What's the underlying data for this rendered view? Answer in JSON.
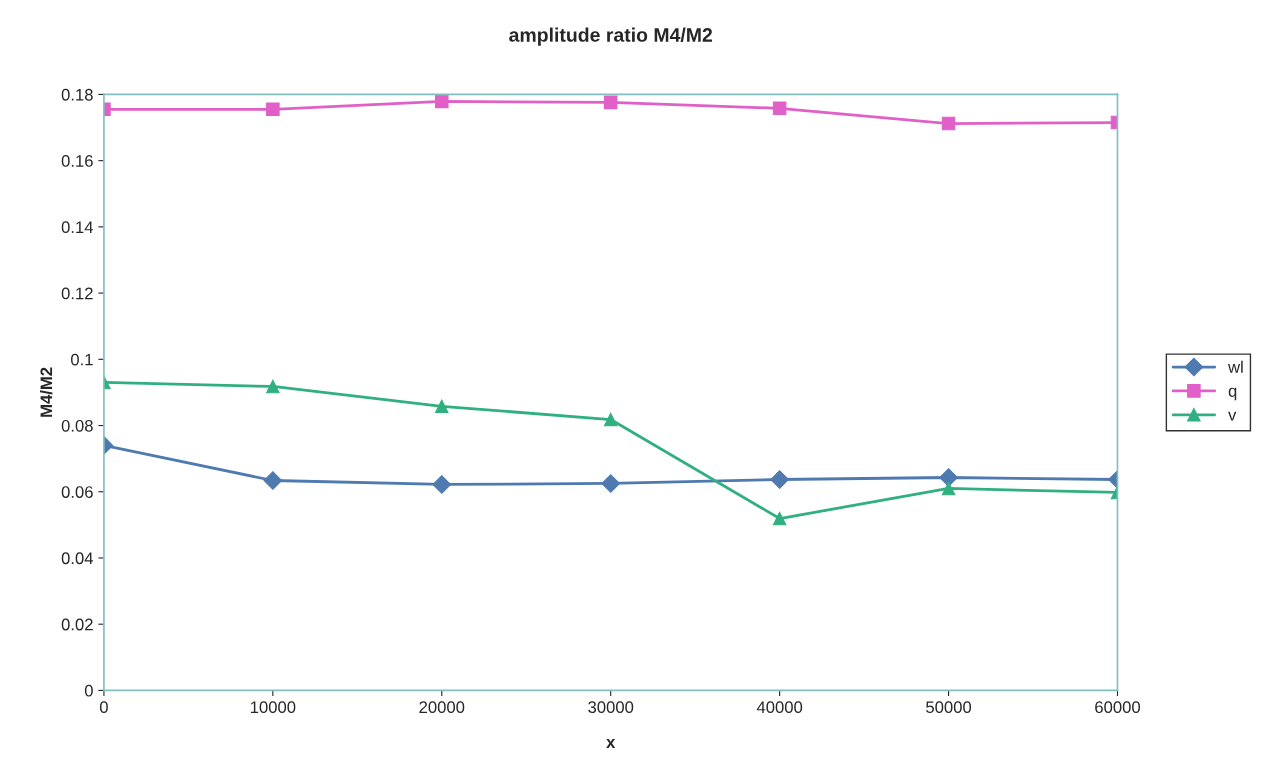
{
  "chart_data": {
    "type": "line",
    "title": "amplitude ratio M4/M2",
    "xlabel": "x",
    "ylabel": "M4/M2",
    "x": [
      0,
      10000,
      20000,
      30000,
      40000,
      50000,
      60000
    ],
    "series": [
      {
        "name": "wl",
        "color": "#4f7ab0",
        "marker": "diamond",
        "values": [
          0.074,
          0.0634,
          0.0622,
          0.0625,
          0.0637,
          0.0643,
          0.0637
        ]
      },
      {
        "name": "q",
        "color": "#e060c8",
        "marker": "square",
        "values": [
          0.1755,
          0.1755,
          0.1779,
          0.1776,
          0.1758,
          0.1712,
          0.1715
        ]
      },
      {
        "name": "v",
        "color": "#30b080",
        "marker": "triangle",
        "values": [
          0.093,
          0.0918,
          0.0858,
          0.0818,
          0.0519,
          0.061,
          0.0598
        ]
      }
    ],
    "xlim": [
      0,
      60000
    ],
    "xticks": [
      0,
      10000,
      20000,
      30000,
      40000,
      50000,
      60000
    ],
    "ylim": [
      0,
      0.18
    ],
    "yticks": [
      0,
      0.02,
      0.04,
      0.06,
      0.08,
      0.1,
      0.12,
      0.14,
      0.16,
      0.18
    ],
    "grid": false,
    "legend": "right",
    "line_style": "solid"
  }
}
